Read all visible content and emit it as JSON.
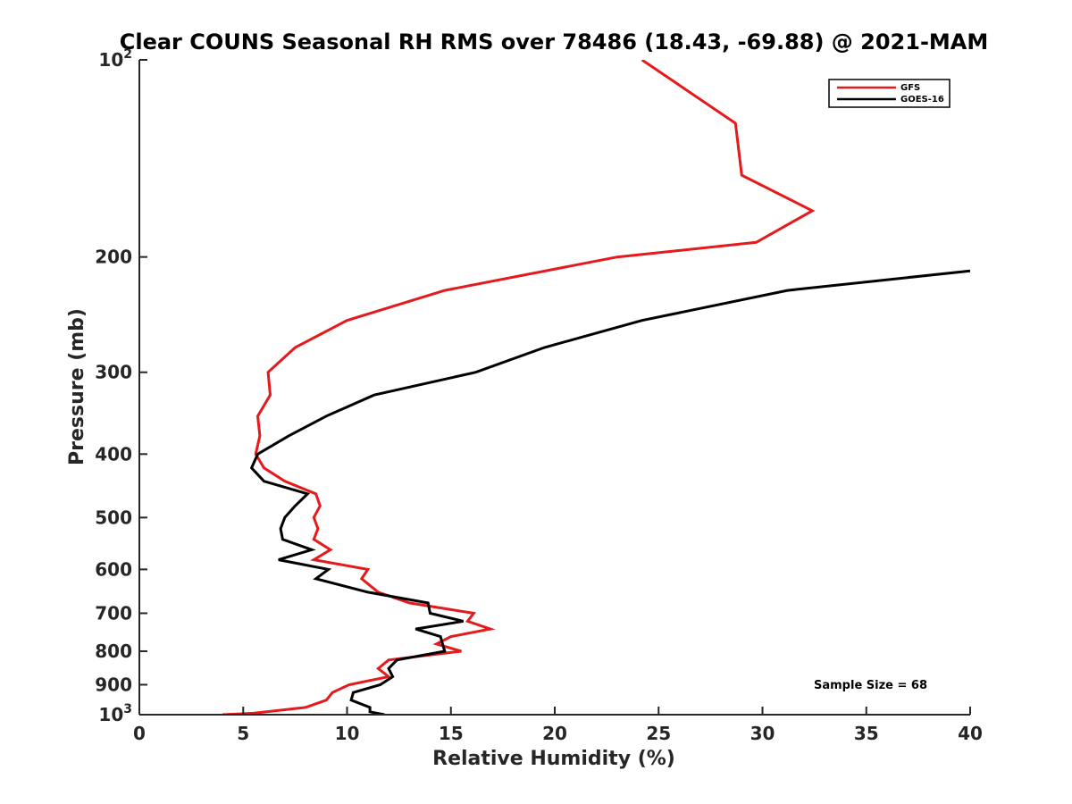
{
  "chart_data": {
    "type": "line",
    "title": "Clear COUNS Seasonal RH RMS over 78486 (18.43, -69.88) @ 2021-MAM",
    "xlabel": "Relative Humidity (%)",
    "ylabel": "Pressure (mb)",
    "xlim": [
      0,
      40
    ],
    "ylim": [
      1000,
      100
    ],
    "yscale": "log",
    "x_ticks": [
      0,
      5,
      10,
      15,
      20,
      25,
      30,
      35,
      40
    ],
    "x_tick_labels": [
      "0",
      "5",
      "10",
      "15",
      "20",
      "25",
      "30",
      "35",
      "40"
    ],
    "y_ticks": [
      100,
      200,
      300,
      400,
      500,
      600,
      700,
      800,
      900,
      1000
    ],
    "y_tick_labels": [
      {
        "base": "10",
        "exp": "2"
      },
      {
        "base": "200",
        "exp": ""
      },
      {
        "base": "300",
        "exp": ""
      },
      {
        "base": "400",
        "exp": ""
      },
      {
        "base": "500",
        "exp": ""
      },
      {
        "base": "600",
        "exp": ""
      },
      {
        "base": "700",
        "exp": ""
      },
      {
        "base": "800",
        "exp": ""
      },
      {
        "base": "900",
        "exp": ""
      },
      {
        "base": "10",
        "exp": "3"
      }
    ],
    "legend_position": "top-right",
    "annotation": "Sample Size = 68",
    "series": [
      {
        "name": "GFS",
        "color": "#e41a1c",
        "points": [
          [
            24.2,
            100
          ],
          [
            28.7,
            125
          ],
          [
            29.0,
            150
          ],
          [
            32.4,
            170
          ],
          [
            29.7,
            190
          ],
          [
            23.0,
            200
          ],
          [
            14.7,
            225
          ],
          [
            10.0,
            250
          ],
          [
            7.5,
            275
          ],
          [
            6.2,
            300
          ],
          [
            6.3,
            325
          ],
          [
            5.7,
            350
          ],
          [
            5.8,
            375
          ],
          [
            5.6,
            400
          ],
          [
            6.0,
            420
          ],
          [
            7.0,
            440
          ],
          [
            8.5,
            460
          ],
          [
            8.7,
            480
          ],
          [
            8.4,
            500
          ],
          [
            8.6,
            520
          ],
          [
            8.4,
            540
          ],
          [
            9.2,
            560
          ],
          [
            8.4,
            580
          ],
          [
            11.0,
            600
          ],
          [
            10.7,
            620
          ],
          [
            11.5,
            650
          ],
          [
            13.0,
            675
          ],
          [
            16.1,
            700
          ],
          [
            15.8,
            720
          ],
          [
            16.9,
            740
          ],
          [
            15.0,
            760
          ],
          [
            14.3,
            780
          ],
          [
            15.5,
            800
          ],
          [
            12.0,
            825
          ],
          [
            11.5,
            850
          ],
          [
            12.0,
            875
          ],
          [
            10.1,
            900
          ],
          [
            9.3,
            925
          ],
          [
            9.0,
            950
          ],
          [
            8.0,
            975
          ],
          [
            5.5,
            995
          ],
          [
            4.0,
            1000
          ],
          [
            4.6,
            1000
          ]
        ]
      },
      {
        "name": "GOES-16",
        "color": "#000000",
        "points": [
          [
            40.0,
            210
          ],
          [
            31.2,
            225
          ],
          [
            24.2,
            250
          ],
          [
            19.5,
            275
          ],
          [
            16.2,
            300
          ],
          [
            11.3,
            325
          ],
          [
            9.0,
            350
          ],
          [
            7.2,
            375
          ],
          [
            5.7,
            400
          ],
          [
            5.4,
            420
          ],
          [
            6.0,
            440
          ],
          [
            8.1,
            460
          ],
          [
            7.5,
            480
          ],
          [
            7.0,
            500
          ],
          [
            6.8,
            520
          ],
          [
            6.9,
            540
          ],
          [
            8.3,
            560
          ],
          [
            6.7,
            580
          ],
          [
            9.1,
            600
          ],
          [
            8.5,
            620
          ],
          [
            11.0,
            650
          ],
          [
            13.9,
            675
          ],
          [
            14.0,
            700
          ],
          [
            15.6,
            720
          ],
          [
            13.3,
            740
          ],
          [
            14.5,
            760
          ],
          [
            14.6,
            780
          ],
          [
            14.7,
            800
          ],
          [
            12.4,
            825
          ],
          [
            12.0,
            850
          ],
          [
            12.2,
            875
          ],
          [
            11.6,
            900
          ],
          [
            10.3,
            925
          ],
          [
            10.2,
            950
          ],
          [
            11.1,
            975
          ],
          [
            11.1,
            990
          ],
          [
            11.8,
            1000
          ]
        ]
      }
    ]
  }
}
